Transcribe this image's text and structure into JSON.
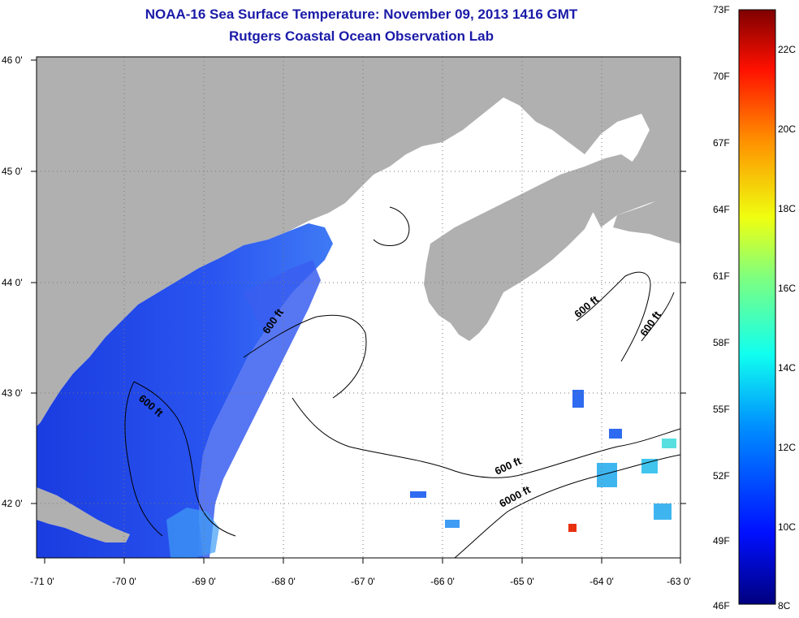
{
  "title": {
    "line1": "NOAA-16 Sea Surface Temperature:  November 09, 2013 1416 GMT",
    "line2": "Rutgers Coastal Ocean Observation Lab"
  },
  "axes": {
    "x_ticks": [
      "-71 0'",
      "-70 0'",
      "-69 0'",
      "-68 0'",
      "-67 0'",
      "-66 0'",
      "-65 0'",
      "-64 0'",
      "-63 0'"
    ],
    "y_ticks": [
      "46 0'",
      "45 0'",
      "44 0'",
      "43 0'",
      "42 0'"
    ]
  },
  "contours": [
    {
      "label": "600 ft"
    },
    {
      "label": "600 ft"
    },
    {
      "label": "600 ft"
    },
    {
      "label": "600 ft"
    },
    {
      "label": "600 ft"
    },
    {
      "label": "6000 ft"
    }
  ],
  "colorbar": {
    "f_labels": [
      "73F",
      "70F",
      "67F",
      "64F",
      "61F",
      "58F",
      "55F",
      "52F",
      "49F",
      "46F"
    ],
    "c_labels": [
      "22C",
      "20C",
      "18C",
      "16C",
      "14C",
      "12C",
      "10C",
      "8C"
    ]
  },
  "colors": {
    "land": "#b0b0b0",
    "title": "#1a1aa8",
    "sst_cold": "#1e3fe0",
    "sst_warm": "#ff2200"
  }
}
